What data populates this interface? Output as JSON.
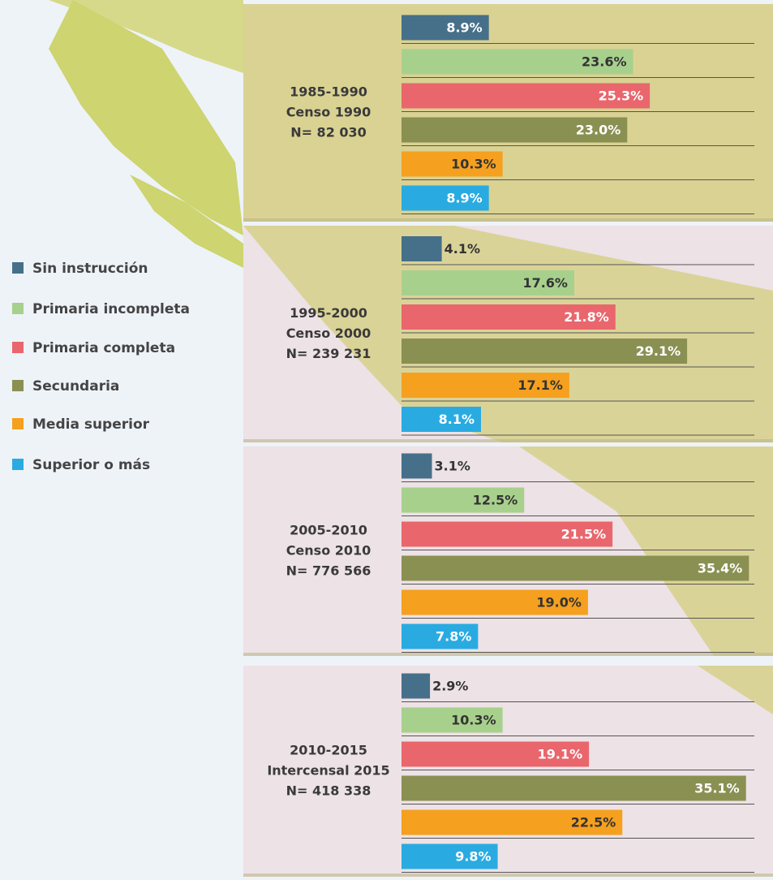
{
  "chart_data": {
    "type": "bar",
    "categories": [
      [
        "1985-1990",
        "Censo 1990",
        "N= 82 030"
      ],
      [
        "1995-2000",
        "Censo 2000",
        "N= 239 231"
      ],
      [
        "2005-2010",
        "Censo 2010",
        "N= 776 566"
      ],
      [
        "2010-2015",
        "Intercensal 2015",
        "N= 418 338"
      ]
    ],
    "series": [
      {
        "name": "Sin instrucción",
        "color": "#46708a",
        "values": [
          8.9,
          4.1,
          3.1,
          2.9
        ],
        "value_labels": [
          "8.9%",
          "4.1%",
          "3.1%",
          "2.9%"
        ]
      },
      {
        "name": "Primaria incompleta",
        "color": "#a8d08d",
        "values": [
          23.6,
          17.6,
          12.5,
          10.3
        ],
        "value_labels": [
          "23.6%",
          "17.6%",
          "12.5%",
          "10.3%"
        ]
      },
      {
        "name": "Primaria completa",
        "color": "#e9666d",
        "values": [
          25.3,
          21.8,
          21.5,
          19.1
        ],
        "value_labels": [
          "25.3%",
          "21.8%",
          "21.5%",
          "19.1%"
        ]
      },
      {
        "name": "Secundaria",
        "color": "#8a9052",
        "values": [
          23.0,
          29.1,
          35.4,
          35.1
        ],
        "value_labels": [
          "23.0%",
          "29.1%",
          "35.4%",
          "35.1%"
        ]
      },
      {
        "name": "Media superior",
        "color": "#f5a01f",
        "values": [
          10.3,
          17.1,
          19.0,
          22.5
        ],
        "value_labels": [
          "10.3%",
          "17.1%",
          "19.0%",
          "22.5%"
        ]
      },
      {
        "name": "Superior o más",
        "color": "#29abe2",
        "values": [
          8.9,
          8.1,
          7.8,
          9.8
        ],
        "value_labels": [
          "8.9%",
          "8.1%",
          "7.8%",
          "9.8%"
        ]
      }
    ]
  }
}
